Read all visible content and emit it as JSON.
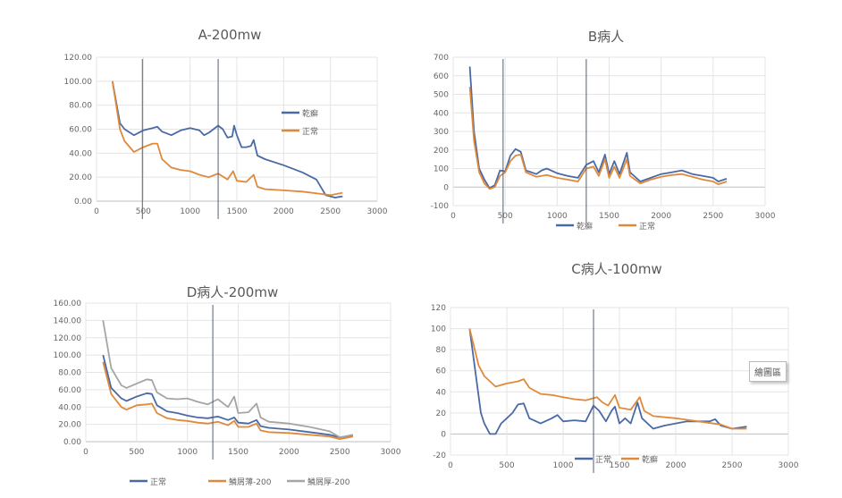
{
  "chart_data": [
    {
      "id": "A",
      "type": "line",
      "title": "A-200mw",
      "xlim": [
        0,
        3000
      ],
      "ylim": [
        0,
        120
      ],
      "xticks": [
        "0",
        "500",
        "1000",
        "1500",
        "2000",
        "2500",
        "3000"
      ],
      "yticks": [
        "0.00",
        "20.00",
        "40.00",
        "60.00",
        "80.00",
        "100.00",
        "120.00"
      ],
      "grid": true,
      "legend_position": "right",
      "markers_x": [
        490,
        1300
      ],
      "series": [
        {
          "name": "乾癬",
          "color": "#4a6aa5",
          "x": [
            170,
            250,
            300,
            400,
            500,
            600,
            650,
            700,
            800,
            900,
            1000,
            1100,
            1150,
            1200,
            1300,
            1350,
            1400,
            1450,
            1470,
            1500,
            1550,
            1600,
            1650,
            1680,
            1720,
            1800,
            2000,
            2200,
            2350,
            2450,
            2550,
            2630
          ],
          "y": [
            100,
            65,
            60,
            55,
            59,
            61,
            62,
            58,
            55,
            59,
            61,
            59,
            55,
            57,
            63,
            60,
            53,
            54,
            63,
            55,
            45,
            45,
            46,
            51,
            38,
            35,
            30,
            24,
            18,
            5,
            3,
            4
          ]
        },
        {
          "name": "正常",
          "color": "#e0893a",
          "x": [
            170,
            250,
            300,
            400,
            500,
            600,
            650,
            700,
            800,
            900,
            1000,
            1100,
            1200,
            1300,
            1400,
            1460,
            1500,
            1600,
            1680,
            1720,
            1800,
            2000,
            2200,
            2400,
            2500,
            2630
          ],
          "y": [
            100,
            60,
            50,
            41,
            45,
            48,
            48,
            35,
            28,
            26,
            25,
            22,
            20,
            23,
            18,
            25,
            17,
            16,
            22,
            12,
            10,
            9,
            8,
            6,
            5,
            7
          ]
        }
      ]
    },
    {
      "id": "B",
      "type": "line",
      "title": "B病人",
      "xlim": [
        0,
        3000
      ],
      "ylim": [
        -100,
        700
      ],
      "xticks": [
        "0",
        "500",
        "1000",
        "1500",
        "2000",
        "2500",
        "3000"
      ],
      "yticks": [
        "-100",
        "0",
        "100",
        "200",
        "300",
        "400",
        "500",
        "600",
        "700"
      ],
      "grid": true,
      "legend_position": "bottom",
      "markers_x": [
        480,
        1280
      ],
      "series": [
        {
          "name": "乾癬",
          "color": "#4a6aa5",
          "x": [
            160,
            200,
            250,
            300,
            350,
            400,
            450,
            500,
            550,
            600,
            650,
            700,
            800,
            850,
            900,
            1000,
            1100,
            1200,
            1280,
            1350,
            1400,
            1460,
            1500,
            1550,
            1600,
            1670,
            1700,
            1800,
            1900,
            2000,
            2100,
            2200,
            2300,
            2400,
            2500,
            2550,
            2630
          ],
          "y": [
            650,
            300,
            100,
            40,
            -5,
            10,
            90,
            85,
            170,
            205,
            190,
            90,
            70,
            90,
            100,
            75,
            60,
            50,
            120,
            140,
            80,
            175,
            70,
            140,
            70,
            185,
            80,
            30,
            50,
            70,
            80,
            90,
            70,
            60,
            50,
            30,
            45
          ]
        },
        {
          "name": "正常",
          "color": "#e0893a",
          "x": [
            160,
            200,
            250,
            300,
            350,
            400,
            450,
            500,
            550,
            600,
            650,
            700,
            800,
            900,
            1000,
            1100,
            1200,
            1280,
            1350,
            1400,
            1460,
            1500,
            1550,
            1600,
            1670,
            1700,
            1800,
            1900,
            2000,
            2100,
            2200,
            2300,
            2400,
            2500,
            2550,
            2630
          ],
          "y": [
            540,
            250,
            80,
            20,
            -10,
            0,
            60,
            80,
            140,
            170,
            175,
            80,
            55,
            65,
            50,
            40,
            30,
            100,
            110,
            60,
            150,
            50,
            110,
            50,
            150,
            60,
            20,
            40,
            55,
            65,
            70,
            55,
            40,
            30,
            15,
            30
          ]
        }
      ]
    },
    {
      "id": "D",
      "type": "line",
      "title": "D病人-200mw",
      "xlim": [
        0,
        3000
      ],
      "ylim": [
        0,
        160
      ],
      "xticks": [
        "0",
        "500",
        "1000",
        "1500",
        "2000",
        "2500",
        "3000"
      ],
      "yticks": [
        "0.00",
        "20.00",
        "40.00",
        "60.00",
        "80.00",
        "100.00",
        "120.00",
        "140.00",
        "160.00"
      ],
      "grid": true,
      "legend_position": "bottom",
      "markers_x": [
        1250
      ],
      "series": [
        {
          "name": "正常",
          "color": "#4a6aa5",
          "x": [
            170,
            250,
            350,
            400,
            500,
            600,
            650,
            700,
            800,
            900,
            1000,
            1100,
            1200,
            1300,
            1400,
            1460,
            1500,
            1600,
            1680,
            1720,
            1800,
            2000,
            2200,
            2400,
            2500,
            2630
          ],
          "y": [
            100,
            62,
            50,
            47,
            52,
            56,
            55,
            42,
            35,
            33,
            30,
            28,
            27,
            29,
            25,
            28,
            22,
            21,
            25,
            18,
            16,
            14,
            11,
            8,
            5,
            7
          ]
        },
        {
          "name": "鱗屑薄-200",
          "color": "#e0893a",
          "x": [
            170,
            250,
            350,
            400,
            500,
            600,
            650,
            700,
            800,
            900,
            1000,
            1100,
            1200,
            1300,
            1400,
            1460,
            1500,
            1600,
            1680,
            1720,
            1800,
            2000,
            2200,
            2400,
            2500,
            2630
          ],
          "y": [
            92,
            55,
            40,
            37,
            42,
            43,
            44,
            33,
            27,
            25,
            24,
            22,
            21,
            23,
            19,
            24,
            17,
            17,
            21,
            13,
            11,
            10,
            8,
            6,
            3,
            6
          ]
        },
        {
          "name": "鱗屑厚-200",
          "color": "#a5a5a5",
          "x": [
            170,
            250,
            350,
            400,
            500,
            600,
            650,
            700,
            800,
            900,
            1000,
            1100,
            1200,
            1300,
            1400,
            1460,
            1500,
            1600,
            1680,
            1720,
            1800,
            2000,
            2200,
            2400,
            2500,
            2630
          ],
          "y": [
            140,
            85,
            65,
            62,
            67,
            72,
            71,
            57,
            50,
            49,
            50,
            46,
            43,
            49,
            40,
            52,
            33,
            34,
            44,
            28,
            23,
            21,
            17,
            12,
            5,
            8
          ]
        }
      ]
    },
    {
      "id": "C",
      "type": "line",
      "title": "C病人-100mw",
      "xlim": [
        0,
        3000
      ],
      "ylim": [
        -20,
        120
      ],
      "xticks": [
        "0",
        "500",
        "1000",
        "1500",
        "2000",
        "2500",
        "3000"
      ],
      "yticks": [
        "-20",
        "0",
        "20",
        "40",
        "60",
        "80",
        "100",
        "120"
      ],
      "grid": true,
      "legend_position": "bottom",
      "markers_x": [
        1270
      ],
      "series": [
        {
          "name": "正常",
          "color": "#4a6aa5",
          "x": [
            170,
            220,
            270,
            300,
            350,
            400,
            450,
            500,
            550,
            600,
            650,
            700,
            800,
            900,
            950,
            1000,
            1100,
            1200,
            1270,
            1320,
            1380,
            1430,
            1460,
            1500,
            1550,
            1600,
            1660,
            1700,
            1800,
            1900,
            2000,
            2100,
            2200,
            2300,
            2350,
            2400,
            2500,
            2630
          ],
          "y": [
            100,
            60,
            20,
            10,
            0,
            0,
            10,
            15,
            20,
            28,
            29,
            15,
            10,
            15,
            18,
            12,
            13,
            12,
            27,
            22,
            12,
            22,
            26,
            10,
            15,
            10,
            30,
            15,
            5,
            8,
            10,
            12,
            12,
            12,
            14,
            8,
            5,
            7
          ]
        },
        {
          "name": "乾癬",
          "color": "#e0893a",
          "x": [
            170,
            250,
            300,
            400,
            500,
            600,
            650,
            700,
            800,
            900,
            1000,
            1100,
            1200,
            1300,
            1350,
            1400,
            1460,
            1500,
            1600,
            1680,
            1720,
            1800,
            2000,
            2200,
            2400,
            2500,
            2630
          ],
          "y": [
            100,
            65,
            55,
            45,
            48,
            50,
            52,
            44,
            38,
            37,
            35,
            33,
            32,
            35,
            30,
            27,
            37,
            25,
            23,
            35,
            22,
            17,
            15,
            12,
            9,
            5,
            5
          ]
        }
      ],
      "tooltip": "繪圖區"
    }
  ]
}
